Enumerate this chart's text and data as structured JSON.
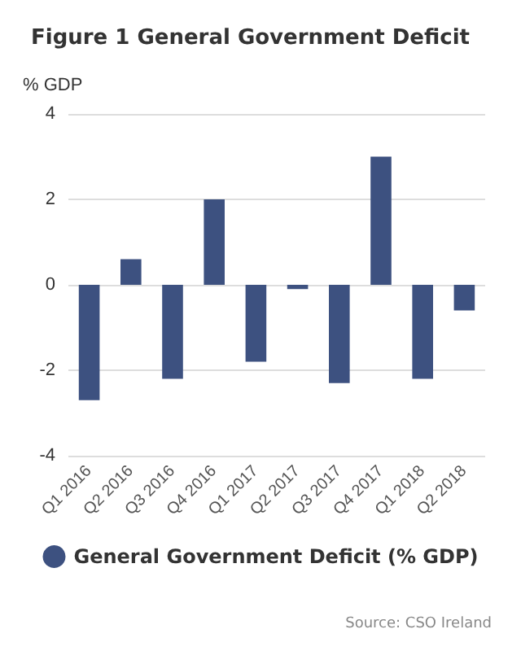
{
  "chart_data": {
    "type": "bar",
    "title": "Figure 1 General Government Deficit",
    "ylabel": "% GDP",
    "categories": [
      "Q1 2016",
      "Q2 2016",
      "Q3 2016",
      "Q4 2016",
      "Q1 2017",
      "Q2 2017",
      "Q3 2017",
      "Q4 2017",
      "Q1 2018",
      "Q2 2018"
    ],
    "series": [
      {
        "name": "General Government Deficit (% GDP)",
        "color": "#3d5180",
        "values": [
          -2.7,
          0.6,
          -2.2,
          2.0,
          -1.8,
          -0.1,
          -2.3,
          3.0,
          -2.2,
          -0.6
        ]
      }
    ],
    "ylim": [
      -4,
      4
    ],
    "yticks": [
      -4,
      -2,
      0,
      2,
      4
    ],
    "grid": "y",
    "legend": "bottom",
    "annotations": [
      "Source: CSO Ireland"
    ]
  }
}
